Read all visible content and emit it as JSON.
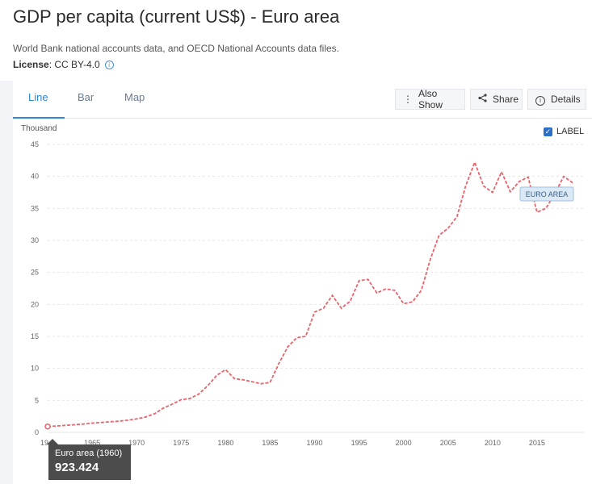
{
  "page": {
    "title": "GDP per capita (current US$) - Euro area",
    "source": "World Bank national accounts data, and OECD National Accounts data files.",
    "license_label": "License",
    "license_value": ": CC BY-4.0"
  },
  "tabs": [
    {
      "label": "Line",
      "active": true
    },
    {
      "label": "Bar",
      "active": false
    },
    {
      "label": "Map",
      "active": false
    }
  ],
  "toolbar": {
    "also_show": "Also Show",
    "share": "Share",
    "details": "Details"
  },
  "label_toggle": {
    "label": "LABEL",
    "checked": true
  },
  "tooltip": {
    "label": "Euro area (1960)",
    "value": "923.424"
  },
  "chart_data": {
    "type": "line",
    "ylabel": "Thousand",
    "ylim": [
      0,
      45
    ],
    "yticks": [
      0,
      5,
      10,
      15,
      20,
      25,
      30,
      35,
      40,
      45
    ],
    "xlim": [
      1960,
      2019
    ],
    "xticks": [
      1965,
      1970,
      1975,
      1980,
      1985,
      1990,
      1995,
      2000,
      2005,
      2010,
      2015
    ],
    "first_xtick_partial": "19",
    "grid": true,
    "color": "#e8636b",
    "series": [
      {
        "name": "EURO AREA",
        "x": [
          1960,
          1961,
          1962,
          1963,
          1964,
          1965,
          1966,
          1967,
          1968,
          1969,
          1970,
          1971,
          1972,
          1973,
          1974,
          1975,
          1976,
          1977,
          1978,
          1979,
          1980,
          1981,
          1982,
          1983,
          1984,
          1985,
          1986,
          1987,
          1988,
          1989,
          1990,
          1991,
          1992,
          1993,
          1994,
          1995,
          1996,
          1997,
          1998,
          1999,
          2000,
          2001,
          2002,
          2003,
          2004,
          2005,
          2006,
          2007,
          2008,
          2009,
          2010,
          2011,
          2012,
          2013,
          2014,
          2015,
          2016,
          2017,
          2018,
          2019
        ],
        "values": [
          0.92,
          1.0,
          1.1,
          1.2,
          1.3,
          1.45,
          1.55,
          1.65,
          1.75,
          1.9,
          2.1,
          2.4,
          2.9,
          3.8,
          4.4,
          5.1,
          5.3,
          6.0,
          7.3,
          8.9,
          9.8,
          8.4,
          8.2,
          7.9,
          7.6,
          7.8,
          10.8,
          13.4,
          14.8,
          15.0,
          18.8,
          19.4,
          21.4,
          19.4,
          20.5,
          23.7,
          23.9,
          21.8,
          22.4,
          22.2,
          20.1,
          20.4,
          22.2,
          27.0,
          30.8,
          31.9,
          33.7,
          38.6,
          42.2,
          38.5,
          37.5,
          40.7,
          37.6,
          39.2,
          39.9,
          34.4,
          35.0,
          37.3,
          40.0,
          39.0
        ]
      }
    ]
  }
}
